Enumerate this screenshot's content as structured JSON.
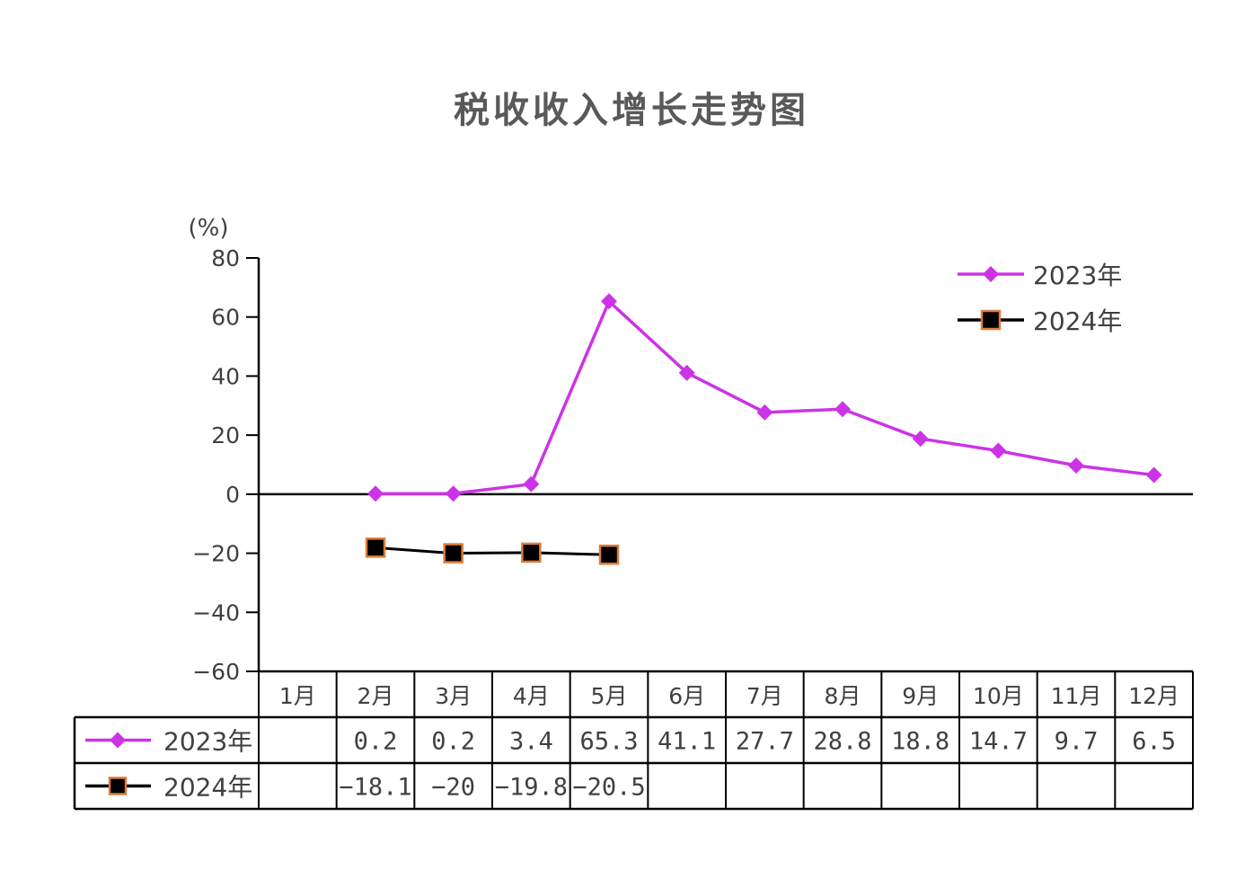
{
  "chart_data": {
    "type": "line",
    "title": "税收收入增长走势图",
    "ylabel": "(%)",
    "ylim": [
      -60,
      80
    ],
    "yticks": [
      80,
      60,
      40,
      20,
      0,
      -20,
      -40,
      -60
    ],
    "ytick_labels": [
      "80",
      "60",
      "40",
      "20",
      "0",
      "−20",
      "−40",
      "−60"
    ],
    "categories": [
      "1月",
      "2月",
      "3月",
      "4月",
      "5月",
      "6月",
      "7月",
      "8月",
      "9月",
      "10月",
      "11月",
      "12月"
    ],
    "legend_position": "top-right",
    "series": [
      {
        "name": "2023年",
        "color": "#cc33e6",
        "marker": "diamond",
        "values": [
          null,
          0.2,
          0.2,
          3.4,
          65.3,
          41.1,
          27.7,
          28.8,
          18.8,
          14.7,
          9.7,
          6.5
        ],
        "table_labels": [
          "",
          "0.2",
          "0.2",
          "3.4",
          "65.3",
          "41.1",
          "27.7",
          "28.8",
          "18.8",
          "14.7",
          "9.7",
          "6.5"
        ]
      },
      {
        "name": "2024年",
        "color": "#000000",
        "marker_edge": "#e07b39",
        "marker": "square",
        "values": [
          null,
          -18.1,
          -20,
          -19.8,
          -20.5,
          null,
          null,
          null,
          null,
          null,
          null,
          null
        ],
        "table_labels": [
          "",
          "−18.1",
          "−20",
          "−19.8",
          "−20.5",
          "",
          "",
          "",
          "",
          "",
          "",
          ""
        ]
      }
    ]
  }
}
